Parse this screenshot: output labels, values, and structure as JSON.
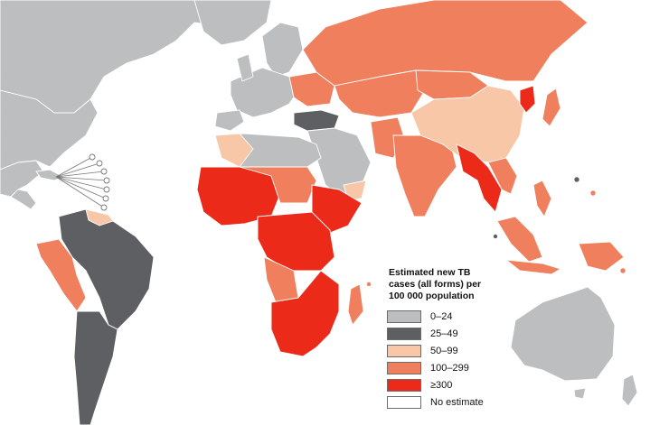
{
  "map": {
    "title": "Estimated new TB cases (all forms) per 100 000 population",
    "colors": {
      "low": "#bdbec0",
      "dark": "#5d5f63",
      "light": "#f7c7a8",
      "mid": "#ef7f5d",
      "high": "#ec2a1a",
      "none": "#ffffff"
    }
  },
  "legend": {
    "title": "Estimated new TB cases (all forms) per 100 000 population",
    "items": [
      {
        "label": "0–24",
        "color": "#bdbec0"
      },
      {
        "label": "25–49",
        "color": "#5d5f63"
      },
      {
        "label": "50–99",
        "color": "#f7c7a8"
      },
      {
        "label": "100–299",
        "color": "#ef7f5d"
      },
      {
        "label": "≥300",
        "color": "#ec2a1a"
      },
      {
        "label": "No estimate",
        "color": "#ffffff"
      }
    ]
  }
}
